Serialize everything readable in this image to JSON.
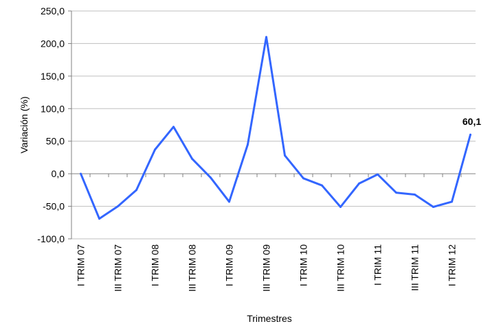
{
  "chart_data": {
    "type": "line",
    "xlabel": "Trimestres",
    "ylabel": "Variación (%)",
    "ylim": [
      -100,
      250
    ],
    "yticks": [
      "250,0",
      "200,0",
      "150,0",
      "100,0",
      "50,0",
      "0,0",
      "-50,0",
      "-100,0"
    ],
    "ytick_values": [
      250,
      200,
      150,
      100,
      50,
      0,
      -50,
      -100
    ],
    "grid": true,
    "line_color": "#3366ff",
    "label_color": "#1a1adb",
    "x_labels": [
      {
        "index": 0,
        "text": "I TRIM 07"
      },
      {
        "index": 2,
        "text": "III TRIM 07"
      },
      {
        "index": 4,
        "text": "I TRIM 08"
      },
      {
        "index": 6,
        "text": "III TRIM 08"
      },
      {
        "index": 8,
        "text": "I TRIM 09"
      },
      {
        "index": 10,
        "text": "III TRIM 09"
      },
      {
        "index": 12,
        "text": "I TRIM 10"
      },
      {
        "index": 14,
        "text": "III TRIM 10"
      },
      {
        "index": 16,
        "text": "I TRIM 11"
      },
      {
        "index": 18,
        "text": "III TRIM 11"
      },
      {
        "index": 20,
        "text": "I TRIM 12"
      }
    ],
    "values": [
      0,
      -69,
      -50,
      -25,
      37,
      72,
      23,
      -6,
      -43,
      45,
      210,
      28,
      -7,
      -18,
      -51,
      -15,
      -1,
      -29,
      -32,
      -51,
      -43,
      60.1
    ],
    "last_label": "60,1"
  }
}
